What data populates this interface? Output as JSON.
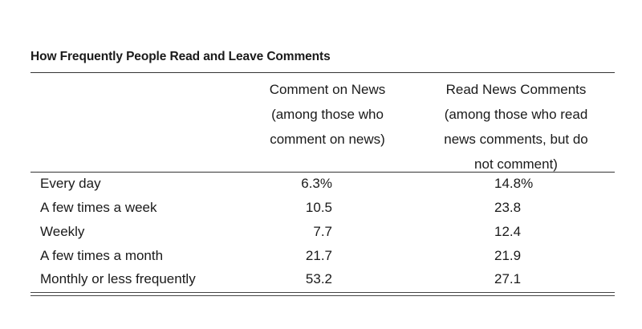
{
  "table": {
    "title": "How Frequently People Read and Leave Comments",
    "columns": [
      {
        "header_lines": [
          "Comment on News",
          "(among those who",
          "comment on news)"
        ]
      },
      {
        "header_lines": [
          "Read News Comments",
          "(among those who read",
          "news comments, but do",
          "not comment)"
        ]
      }
    ],
    "rows": [
      {
        "label": "Every day",
        "comment_on_news": "6.3%",
        "read_news_comments": "14.8%"
      },
      {
        "label": "A few times a week",
        "comment_on_news": "10.5",
        "read_news_comments": "23.8"
      },
      {
        "label": "Weekly",
        "comment_on_news": "7.7",
        "read_news_comments": "12.4"
      },
      {
        "label": "A few times a month",
        "comment_on_news": "21.7",
        "read_news_comments": "21.9"
      },
      {
        "label": "Monthly or less frequently",
        "comment_on_news": "53.2",
        "read_news_comments": "27.1"
      }
    ]
  }
}
